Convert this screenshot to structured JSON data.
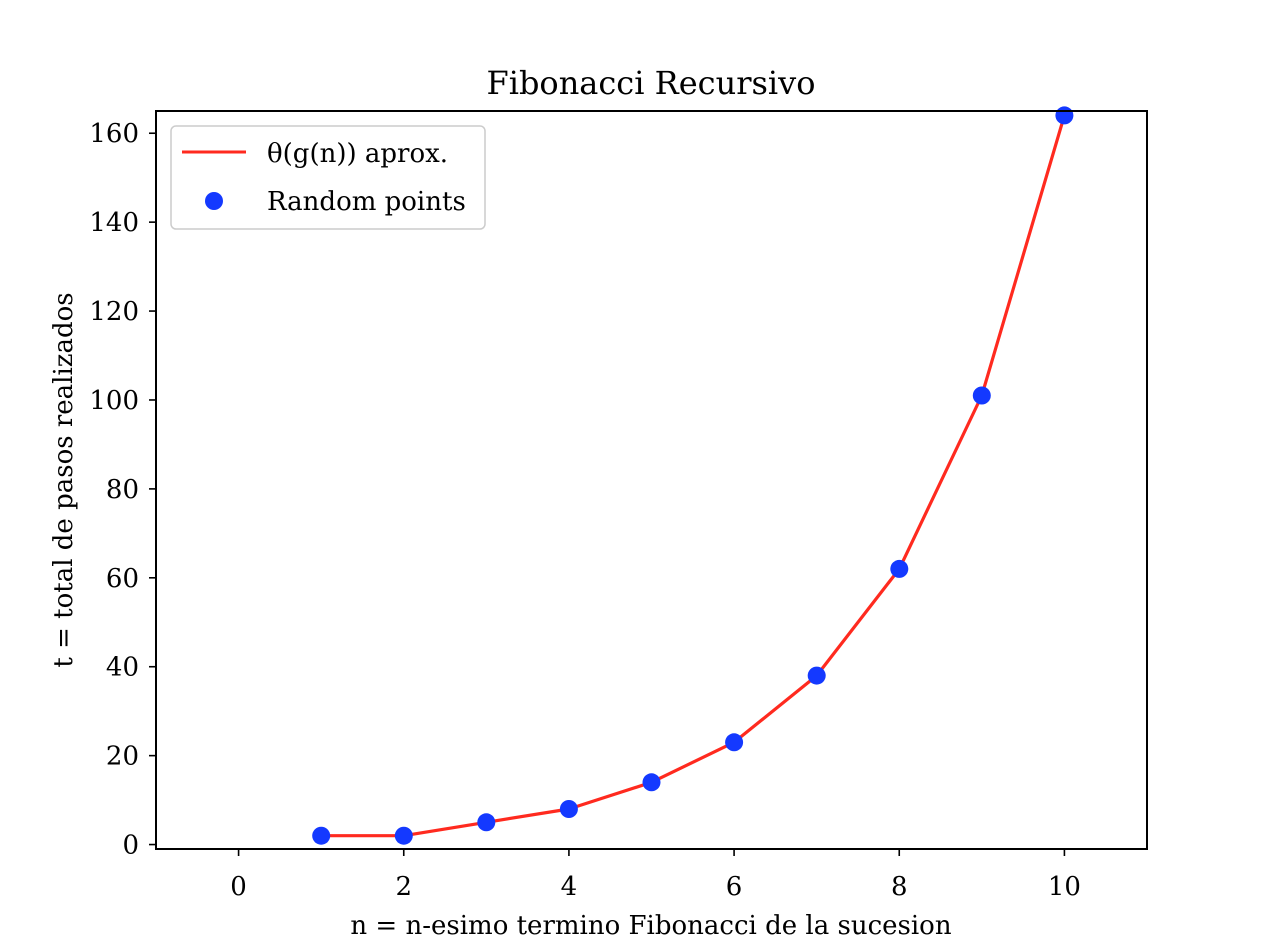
{
  "chart_data": {
    "type": "line",
    "title": "Fibonacci Recursivo",
    "xlabel": "n = n-esimo termino Fibonacci de la sucesion",
    "ylabel": "t = total de pasos realizados",
    "xlim": [
      -1,
      11
    ],
    "ylim": [
      -1,
      165
    ],
    "xticks": [
      0,
      2,
      4,
      6,
      8,
      10
    ],
    "yticks": [
      0,
      20,
      40,
      60,
      80,
      100,
      120,
      140,
      160
    ],
    "x": [
      1,
      2,
      3,
      4,
      5,
      6,
      7,
      8,
      9,
      10
    ],
    "series": [
      {
        "name": "θ(g(n)) aprox.",
        "kind": "line",
        "color": "#ff2a1f",
        "values": [
          2,
          2,
          5,
          8,
          14,
          23,
          38,
          62,
          101,
          164
        ]
      },
      {
        "name": "Random points",
        "kind": "scatter",
        "color": "#1439ff",
        "values": [
          2,
          2,
          5,
          8,
          14,
          23,
          38,
          62,
          101,
          164
        ]
      }
    ],
    "grid": false,
    "legend_position": "top-left"
  }
}
